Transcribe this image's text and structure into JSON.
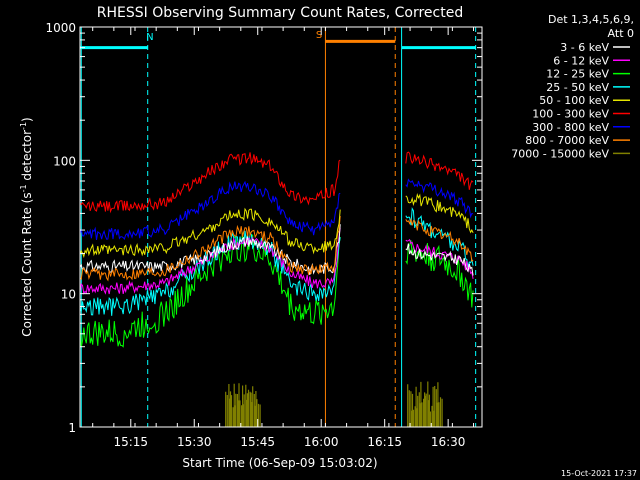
{
  "chart_data": {
    "type": "line",
    "title": "RHESSI Observing Summary Count Rates, Corrected",
    "xlabel": "Start Time (06-Sep-09 15:03:02)",
    "ylabel_pre": "Corrected Count Rate (s",
    "ylabel_sup1": "-1",
    "ylabel_mid": " detector",
    "ylabel_sup2": "-1",
    "ylabel_post": ")",
    "yscale": "log",
    "ylim": [
      1,
      1000
    ],
    "xlim_minutes": [
      0,
      95
    ],
    "x_ticks": [
      {
        "min": 12,
        "label": "15:15"
      },
      {
        "min": 27,
        "label": "15:30"
      },
      {
        "min": 42,
        "label": "15:45"
      },
      {
        "min": 57,
        "label": "16:00"
      },
      {
        "min": 72,
        "label": "16:15"
      },
      {
        "min": 87,
        "label": "16:30"
      }
    ],
    "y_tick_labels": [
      {
        "v": 1,
        "label": "1"
      },
      {
        "v": 10,
        "label": "10"
      },
      {
        "v": 100,
        "label": "100"
      },
      {
        "v": 1000,
        "label": "1000"
      }
    ],
    "legend": {
      "header1": "Det 1,3,4,5,6,9,",
      "header2": "Att 0",
      "items": [
        {
          "label": "3 - 6 keV",
          "color": "#ffffff"
        },
        {
          "label": "6 - 12 keV",
          "color": "#ff00ff"
        },
        {
          "label": "12 - 25 keV",
          "color": "#00ff00"
        },
        {
          "label": "25 - 50 keV",
          "color": "#00ffff"
        },
        {
          "label": "50 - 100 keV",
          "color": "#e6e600"
        },
        {
          "label": "100 - 300 keV",
          "color": "#ff0000"
        },
        {
          "label": "300 - 800 keV",
          "color": "#0000ff"
        },
        {
          "label": "800 - 7000 keV",
          "color": "#ff8000"
        },
        {
          "label": "7000 - 15000 keV",
          "color": "#808000"
        }
      ]
    },
    "annotations": [
      {
        "text": "N",
        "color": "#00ffff",
        "x_min": 16.5,
        "y": 800
      },
      {
        "text": "S",
        "color": "#ff8000",
        "x_min": 56.5,
        "y": 830
      }
    ],
    "night_flag": {
      "color": "#00ffff",
      "start_min": 0,
      "end_min": 16,
      "y": 700
    },
    "night_flag_2": {
      "color": "#00ffff",
      "start_min": 76,
      "end_min": 93.5,
      "y": 700
    },
    "saa_flag": {
      "color": "#ff8000",
      "start_min": 58,
      "end_min": 74.5,
      "y": 780
    },
    "vertical_markers": [
      {
        "min": 0.3,
        "color": "#00ffff",
        "style": "solid"
      },
      {
        "min": 16,
        "color": "#00ffff",
        "style": "dashed"
      },
      {
        "min": 58,
        "color": "#ff8000",
        "style": "solid"
      },
      {
        "min": 74.5,
        "color": "#ff8000",
        "style": "dashed"
      },
      {
        "min": 76,
        "color": "#00ffff",
        "style": "solid"
      },
      {
        "min": 93.5,
        "color": "#00ffff",
        "style": "dashed"
      }
    ],
    "data_segments": [
      {
        "start_min": 0,
        "end_min": 61.5
      },
      {
        "start_min": 77,
        "end_min": 93
      }
    ],
    "series": [
      {
        "name": "3 - 6 keV",
        "color": "#ffffff",
        "x": [
          0,
          10,
          20,
          30,
          35,
          40,
          45,
          50,
          55,
          60,
          61.5,
          77,
          80,
          85,
          90,
          93
        ],
        "y": [
          16,
          16,
          16,
          19,
          23,
          25,
          22,
          17,
          15,
          16,
          30,
          22,
          20,
          19,
          18,
          14
        ]
      },
      {
        "name": "6 - 12 keV",
        "color": "#ff00ff",
        "x": [
          0,
          10,
          20,
          30,
          35,
          40,
          45,
          50,
          55,
          60,
          61.5,
          77,
          80,
          85,
          90,
          93
        ],
        "y": [
          11,
          11,
          12,
          18,
          23,
          25,
          22,
          14,
          12,
          12,
          30,
          24,
          22,
          20,
          18,
          14
        ]
      },
      {
        "name": "12 - 25 keV",
        "color": "#00ff00",
        "x": [
          0,
          10,
          20,
          30,
          35,
          40,
          45,
          50,
          55,
          60,
          61.5,
          77,
          80,
          85,
          90,
          93
        ],
        "y": [
          5,
          5,
          7,
          15,
          21,
          23,
          18,
          8,
          7,
          8,
          28,
          22,
          20,
          18,
          14,
          9
        ]
      },
      {
        "name": "25 - 50 keV",
        "color": "#00ffff",
        "x": [
          0,
          10,
          20,
          30,
          35,
          40,
          45,
          50,
          55,
          60,
          61.5,
          77,
          80,
          85,
          90,
          93
        ],
        "y": [
          8,
          8,
          10,
          18,
          24,
          26,
          22,
          11,
          10,
          10,
          30,
          40,
          35,
          28,
          22,
          16
        ]
      },
      {
        "name": "50 - 100 keV",
        "color": "#e6e600",
        "x": [
          0,
          10,
          20,
          30,
          35,
          40,
          45,
          50,
          55,
          60,
          61.5,
          77,
          80,
          85,
          90,
          93
        ],
        "y": [
          21,
          21,
          22,
          30,
          38,
          40,
          35,
          24,
          22,
          23,
          40,
          52,
          50,
          45,
          38,
          30
        ]
      },
      {
        "name": "100 - 300 keV",
        "color": "#ff0000",
        "x": [
          0,
          10,
          20,
          30,
          35,
          40,
          45,
          50,
          55,
          60,
          61.5,
          77,
          80,
          85,
          90,
          93
        ],
        "y": [
          45,
          45,
          48,
          80,
          100,
          105,
          90,
          55,
          50,
          60,
          100,
          105,
          100,
          90,
          75,
          62
        ]
      },
      {
        "name": "300 - 800 keV",
        "color": "#0000ff",
        "x": [
          0,
          10,
          20,
          30,
          35,
          40,
          45,
          50,
          55,
          60,
          61.5,
          77,
          80,
          85,
          90,
          93
        ],
        "y": [
          28,
          28,
          30,
          48,
          62,
          65,
          55,
          33,
          30,
          34,
          60,
          68,
          65,
          58,
          48,
          38
        ]
      },
      {
        "name": "800 - 7000 keV",
        "color": "#ff8000",
        "x": [
          0,
          10,
          20,
          30,
          35,
          40,
          45,
          50,
          55,
          60,
          61.5,
          77,
          80,
          85,
          90,
          93
        ],
        "y": [
          14,
          14,
          15,
          22,
          28,
          30,
          26,
          16,
          15,
          16,
          35,
          35,
          32,
          28,
          24,
          18
        ]
      },
      {
        "name": "7000 - 15000 keV",
        "color": "#808000",
        "x": [
          35,
          36,
          37,
          38,
          39,
          40,
          41,
          42,
          78,
          79,
          80,
          81,
          82,
          83,
          84,
          85
        ],
        "y": [
          2,
          1.6,
          2,
          1.5,
          2,
          1.8,
          2,
          1.5,
          2,
          1.5,
          2,
          1.6,
          2,
          1.5,
          2,
          1.7
        ]
      }
    ],
    "grid": false,
    "legend_position": "right",
    "timestamp": "15-Oct-2021 17:37"
  }
}
